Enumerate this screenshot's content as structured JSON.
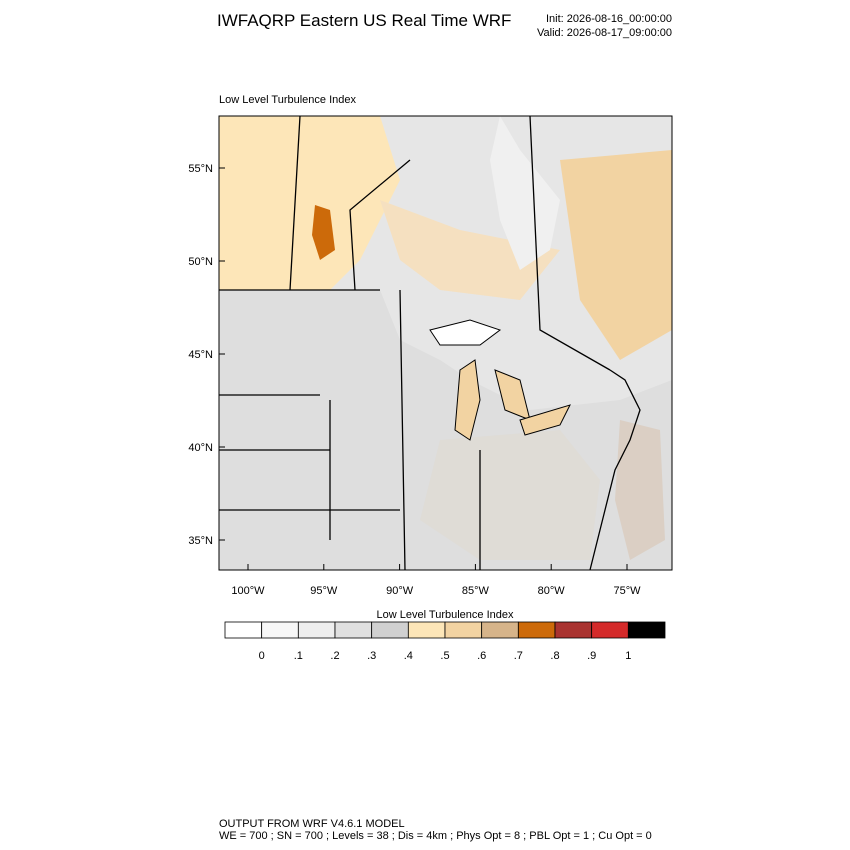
{
  "header": {
    "title": "IWFAQRP Eastern US Real Time WRF",
    "init": "Init: 2026-08-16_00:00:00",
    "valid": "Valid: 2026-08-17_09:00:00"
  },
  "map": {
    "title": "Low Level Turbulence Index",
    "lat_labels": [
      "55°N",
      "50°N",
      "45°N",
      "40°N",
      "35°N"
    ],
    "lon_labels": [
      "100°W",
      "95°W",
      "90°W",
      "85°W",
      "80°W",
      "75°W"
    ]
  },
  "colorbar": {
    "title": "Low Level Turbulence Index",
    "colors": [
      "#ffffff",
      "#f7f7f7",
      "#eeeeee",
      "#e0e0e0",
      "#d0d0d0",
      "#fde6b8",
      "#f2d3a2",
      "#d6b48a",
      "#cc6a0a",
      "#a93330",
      "#d42a2a",
      "#000000"
    ],
    "labels": [
      "0",
      ".1",
      ".2",
      ".3",
      ".4",
      ".5",
      ".6",
      ".7",
      ".8",
      ".9",
      "1"
    ]
  },
  "footer": {
    "line1": "OUTPUT FROM WRF V4.6.1 MODEL",
    "line2": "WE = 700 ; SN = 700 ; Levels = 38 ; Dis = 4km ; Phys Opt = 8 ; PBL Opt = 1 ; Cu Opt = 0"
  }
}
